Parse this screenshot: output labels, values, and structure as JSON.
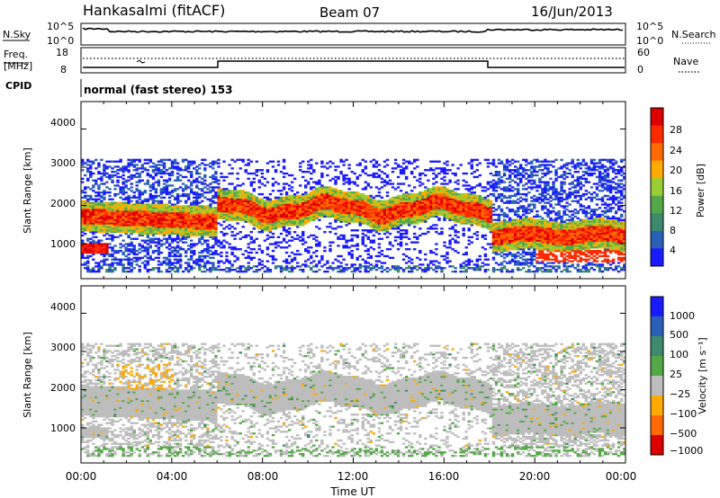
{
  "header": {
    "station": "Hankasalmi (fitACF)",
    "beam": "Beam 07",
    "date": "16/Jun/2013"
  },
  "nsky": {
    "left_label": "N.Sky",
    "right_label": "N.Search",
    "left_ticks": [
      "10^5",
      "10^0"
    ],
    "right_ticks": [
      "10^5",
      "10^0"
    ]
  },
  "freq": {
    "left_label_1": "Freq.",
    "left_label_2": "[MHz]",
    "right_label": "Nave",
    "left_ticks": [
      "18",
      "8"
    ],
    "right_ticks": [
      "60",
      "0"
    ]
  },
  "cpid": {
    "label": "CPID",
    "mode": "normal (fast stereo) 153"
  },
  "colors": {
    "power_scale": [
      "#1a1aff",
      "#2a5fb8",
      "#3d8a6c",
      "#55a848",
      "#9acd32",
      "#ffaa00",
      "#ff6a00",
      "#ff2a00",
      "#dd0000"
    ],
    "velocity_scale": [
      "#1a1aff",
      "#2a5fb8",
      "#3d8a6c",
      "#55a848",
      "#bdbdbd",
      "#ffaa00",
      "#ff6a00",
      "#dd0000"
    ]
  },
  "chart_data": [
    {
      "type": "heatmap",
      "name": "power",
      "ylabel": "Slant Range [km]",
      "y_ticks": [
        "4000",
        "3000",
        "2000",
        "1000"
      ],
      "ylim": [
        200,
        4600
      ],
      "colorbar_label": "Power [dB]",
      "colorbar_ticks": [
        "28",
        "24",
        "20",
        "16",
        "12",
        "8",
        "4"
      ],
      "xlim_hours": [
        0,
        24
      ]
    },
    {
      "type": "heatmap",
      "name": "velocity",
      "ylabel": "Slant Range [km]",
      "y_ticks": [
        "4000",
        "3000",
        "2000",
        "1000"
      ],
      "ylim": [
        200,
        4600
      ],
      "colorbar_label": "Velocity [m s⁻¹]",
      "colorbar_ticks": [
        "1000",
        "500",
        "100",
        "25",
        "−25",
        "−100",
        "−500",
        "−1000"
      ],
      "xlabel": "Time UT",
      "x_ticks": [
        "00:00",
        "04:00",
        "08:00",
        "12:00",
        "16:00",
        "20:00",
        "00:00"
      ],
      "xlim_hours": [
        0,
        24
      ]
    }
  ]
}
